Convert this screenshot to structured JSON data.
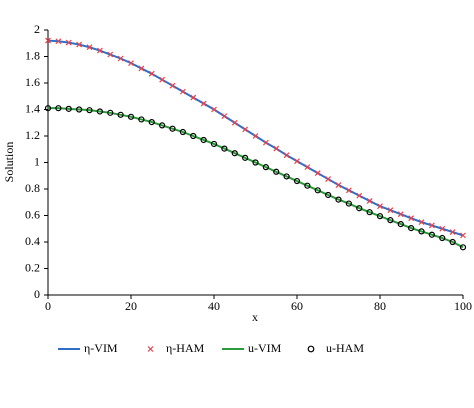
{
  "chart_data": {
    "type": "line",
    "x_label": "x",
    "y_label": "Solution",
    "x": [
      0,
      2.5,
      5,
      7.5,
      10,
      12.5,
      15,
      17.5,
      20,
      22.5,
      25,
      27.5,
      30,
      32.5,
      35,
      37.5,
      40,
      42.5,
      45,
      47.5,
      50,
      52.5,
      55,
      57.5,
      60,
      62.5,
      65,
      67.5,
      70,
      72.5,
      75,
      77.5,
      80,
      82.5,
      85,
      87.5,
      90,
      92.5,
      95,
      97.5,
      100
    ],
    "series": [
      {
        "name": "η-VIM",
        "color": "#2e6fc7",
        "marker": "none",
        "line": true,
        "values": [
          1.92,
          1.915,
          1.905,
          1.89,
          1.87,
          1.845,
          1.815,
          1.785,
          1.75,
          1.71,
          1.67,
          1.625,
          1.58,
          1.535,
          1.49,
          1.445,
          1.4,
          1.35,
          1.3,
          1.25,
          1.2,
          1.15,
          1.105,
          1.055,
          1.01,
          0.965,
          0.92,
          0.875,
          0.83,
          0.79,
          0.75,
          0.71,
          0.67,
          0.64,
          0.61,
          0.58,
          0.55,
          0.525,
          0.5,
          0.475,
          0.45
        ]
      },
      {
        "name": "η-HAM",
        "color": "#e8404a",
        "marker": "x",
        "line": false,
        "values": [
          1.92,
          1.915,
          1.905,
          1.89,
          1.87,
          1.845,
          1.815,
          1.785,
          1.75,
          1.71,
          1.67,
          1.625,
          1.58,
          1.535,
          1.49,
          1.445,
          1.4,
          1.35,
          1.3,
          1.25,
          1.2,
          1.15,
          1.105,
          1.055,
          1.01,
          0.965,
          0.92,
          0.875,
          0.83,
          0.79,
          0.75,
          0.71,
          0.67,
          0.64,
          0.61,
          0.58,
          0.55,
          0.525,
          0.5,
          0.475,
          0.45
        ]
      },
      {
        "name": "u-VIM",
        "color": "#2a9a3a",
        "marker": "none",
        "line": true,
        "values": [
          1.41,
          1.41,
          1.405,
          1.4,
          1.395,
          1.385,
          1.375,
          1.36,
          1.345,
          1.325,
          1.305,
          1.28,
          1.255,
          1.23,
          1.2,
          1.17,
          1.14,
          1.105,
          1.07,
          1.035,
          1.0,
          0.965,
          0.93,
          0.895,
          0.86,
          0.825,
          0.79,
          0.755,
          0.72,
          0.69,
          0.655,
          0.625,
          0.595,
          0.565,
          0.535,
          0.505,
          0.48,
          0.455,
          0.43,
          0.4,
          0.36
        ]
      },
      {
        "name": "u-HAM",
        "color": "#000000",
        "marker": "o",
        "line": false,
        "values": [
          1.41,
          1.41,
          1.405,
          1.4,
          1.395,
          1.385,
          1.375,
          1.36,
          1.345,
          1.325,
          1.305,
          1.28,
          1.255,
          1.23,
          1.2,
          1.17,
          1.14,
          1.105,
          1.07,
          1.035,
          1.0,
          0.965,
          0.93,
          0.895,
          0.86,
          0.825,
          0.79,
          0.755,
          0.72,
          0.69,
          0.655,
          0.625,
          0.595,
          0.565,
          0.535,
          0.505,
          0.48,
          0.455,
          0.43,
          0.4,
          0.36
        ]
      }
    ],
    "xlim": [
      0,
      100
    ],
    "xticks": [
      0,
      20,
      40,
      60,
      80,
      100
    ],
    "ylim": [
      0,
      2
    ],
    "yticks": [
      0,
      0.2,
      0.4,
      0.6,
      0.8,
      1,
      1.2,
      1.4,
      1.6,
      1.8,
      2
    ],
    "grid": false,
    "legend": "bottom"
  }
}
